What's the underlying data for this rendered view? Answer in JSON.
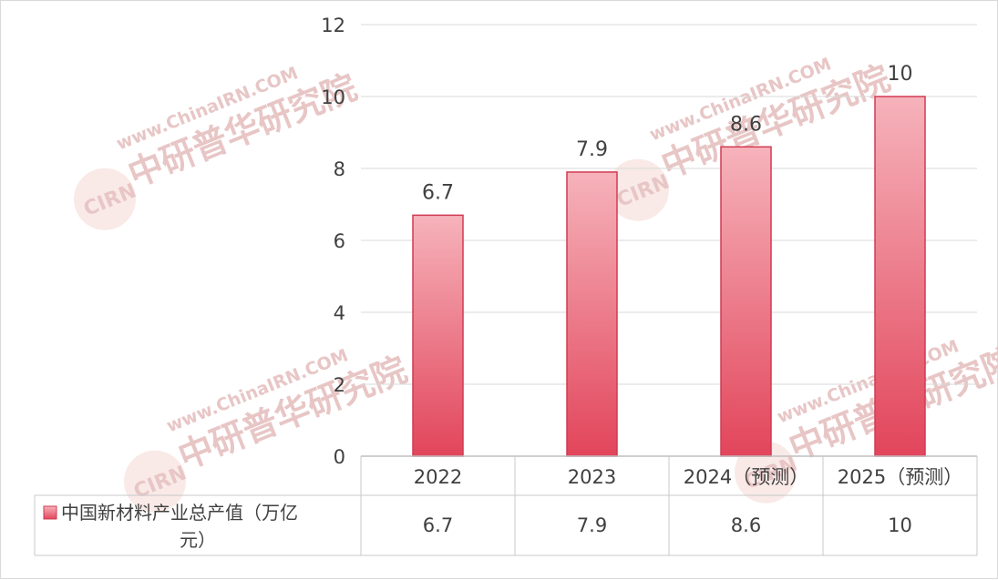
{
  "watermark": {
    "url": "www.ChinaIRN.COM",
    "name": "中研普华研究院",
    "logo": "CIRN"
  },
  "chart_data": {
    "type": "bar",
    "categories": [
      "2022",
      "2023",
      "2024（预测）",
      "2025（预测）"
    ],
    "series": [
      {
        "name": "中国新材料产业总产值（万亿元）",
        "values": [
          6.7,
          7.9,
          8.6,
          10
        ]
      }
    ],
    "data_labels": [
      "6.7",
      "7.9",
      "8.6",
      "10"
    ],
    "table_values": [
      "6.7",
      "7.9",
      "8.6",
      "10"
    ],
    "legend_lines": [
      "中国新材料产业总产值（万亿",
      "元）"
    ],
    "yticks": [
      "0",
      "2",
      "4",
      "6",
      "8",
      "10",
      "12"
    ],
    "ylim": [
      0,
      12
    ],
    "grid": true,
    "data_table": true,
    "colors": {
      "bar_top": "#f6b3bb",
      "bar_bottom": "#e2455b",
      "bar_edge": "#d13a52",
      "grid": "#d9d9d9"
    }
  }
}
